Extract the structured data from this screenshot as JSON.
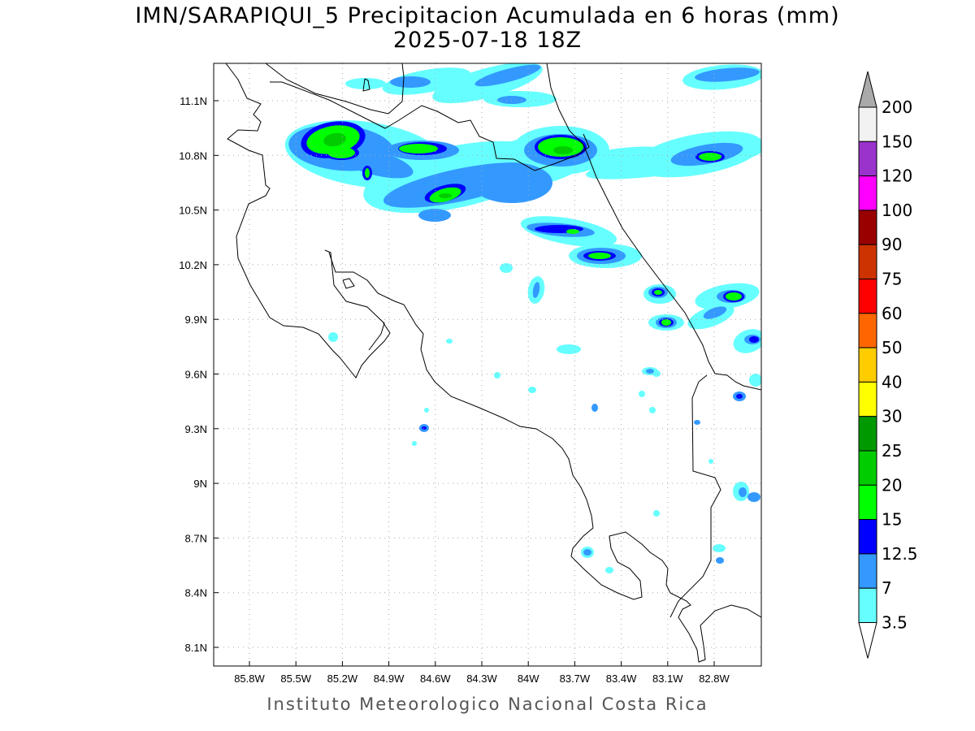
{
  "title": "IMN/SARAPIQUI_5 Precipitacion Acumulada en 6 horas (mm)",
  "subtitle": "2025-07-18 18Z",
  "credit": "Instituto Meteorologico Nacional Costa Rica",
  "map": {
    "lat_ticks": [
      "11.1N",
      "10.8N",
      "10.5N",
      "10.2N",
      "9.9N",
      "9.6N",
      "9.3N",
      "9N",
      "8.7N",
      "8.4N",
      "8.1N"
    ],
    "lon_ticks": [
      "85.8W",
      "85.5W",
      "85.2W",
      "84.9W",
      "84.6W",
      "84.3W",
      "84W",
      "83.7W",
      "83.4W",
      "83.1W",
      "82.8W"
    ]
  },
  "colorbar": {
    "unit": "mm",
    "labels": [
      "200",
      "150",
      "120",
      "100",
      "90",
      "75",
      "60",
      "50",
      "40",
      "30",
      "25",
      "20",
      "15",
      "12.5",
      "7",
      "3.5"
    ],
    "colors": [
      "#f2f2f2",
      "#9933cc",
      "#ff00ff",
      "#990000",
      "#cc3300",
      "#ff0000",
      "#ff6600",
      "#ffcc00",
      "#ffff00",
      "#009900",
      "#00cc00",
      "#00ff00",
      "#0000ff",
      "#3399ff",
      "#66ffff"
    ],
    "over_color": "#aaaaaa",
    "under_color": "#ffffff"
  }
}
